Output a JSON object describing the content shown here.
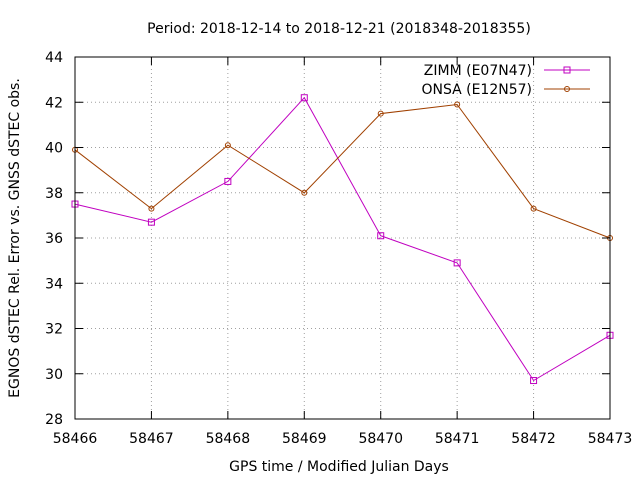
{
  "chart_data": {
    "type": "line",
    "title": "Period: 2018-12-14 to 2018-12-21 (2018348-2018355)",
    "xlabel": "GPS time / Modified Julian Days",
    "ylabel": "EGNOS dSTEC Rel. Error vs. GNSS dSTEC obs.",
    "xlim": [
      58466,
      58473
    ],
    "ylim": [
      28,
      44
    ],
    "xticks": [
      58466,
      58467,
      58468,
      58469,
      58470,
      58471,
      58472,
      58473
    ],
    "yticks": [
      28,
      30,
      32,
      34,
      36,
      38,
      40,
      42,
      44
    ],
    "grid": true,
    "legend_position": "top-right",
    "series": [
      {
        "name": "ZIMM (E07N47)",
        "color": "#c000c0",
        "marker": "square",
        "x": [
          58466,
          58467,
          58468,
          58469,
          58470,
          58471,
          58472,
          58473
        ],
        "values": [
          37.5,
          36.7,
          38.5,
          42.2,
          36.1,
          34.9,
          29.7,
          31.7
        ]
      },
      {
        "name": "ONSA (E12N57)",
        "color": "#a04000",
        "marker": "circle",
        "x": [
          58466,
          58467,
          58468,
          58469,
          58470,
          58471,
          58472,
          58473
        ],
        "values": [
          39.9,
          37.3,
          40.1,
          38.0,
          41.5,
          41.9,
          37.3,
          36.0
        ]
      }
    ]
  }
}
